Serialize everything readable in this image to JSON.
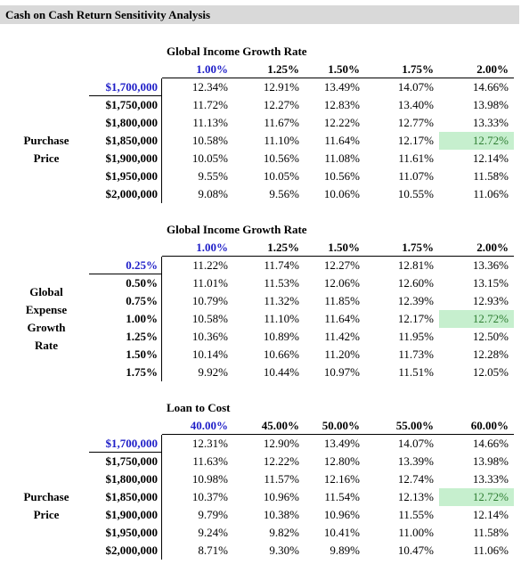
{
  "title": "Cash on Cash Return Sensitivity Analysis",
  "tables": [
    {
      "header": "Global Income Growth Rate",
      "row_label": "Purchase Price",
      "columns": [
        "1.00%",
        "1.25%",
        "1.50%",
        "1.75%",
        "2.00%"
      ],
      "highlighted_cell": [
        3,
        4
      ],
      "rows": [
        {
          "label": "$1,700,000",
          "values": [
            "12.34%",
            "12.91%",
            "13.49%",
            "14.07%",
            "14.66%"
          ]
        },
        {
          "label": "$1,750,000",
          "values": [
            "11.72%",
            "12.27%",
            "12.83%",
            "13.40%",
            "13.98%"
          ]
        },
        {
          "label": "$1,800,000",
          "values": [
            "11.13%",
            "11.67%",
            "12.22%",
            "12.77%",
            "13.33%"
          ]
        },
        {
          "label": "$1,850,000",
          "values": [
            "10.58%",
            "11.10%",
            "11.64%",
            "12.17%",
            "12.72%"
          ]
        },
        {
          "label": "$1,900,000",
          "values": [
            "10.05%",
            "10.56%",
            "11.08%",
            "11.61%",
            "12.14%"
          ]
        },
        {
          "label": "$1,950,000",
          "values": [
            "9.55%",
            "10.05%",
            "10.56%",
            "11.07%",
            "11.58%"
          ]
        },
        {
          "label": "$2,000,000",
          "values": [
            "9.08%",
            "9.56%",
            "10.06%",
            "10.55%",
            "11.06%"
          ]
        }
      ]
    },
    {
      "header": "Global Income Growth Rate",
      "row_label": "Global Expense Growth Rate",
      "columns": [
        "1.00%",
        "1.25%",
        "1.50%",
        "1.75%",
        "2.00%"
      ],
      "highlighted_cell": [
        3,
        4
      ],
      "rows": [
        {
          "label": "0.25%",
          "values": [
            "11.22%",
            "11.74%",
            "12.27%",
            "12.81%",
            "13.36%"
          ]
        },
        {
          "label": "0.50%",
          "values": [
            "11.01%",
            "11.53%",
            "12.06%",
            "12.60%",
            "13.15%"
          ]
        },
        {
          "label": "0.75%",
          "values": [
            "10.79%",
            "11.32%",
            "11.85%",
            "12.39%",
            "12.93%"
          ]
        },
        {
          "label": "1.00%",
          "values": [
            "10.58%",
            "11.10%",
            "11.64%",
            "12.17%",
            "12.72%"
          ]
        },
        {
          "label": "1.25%",
          "values": [
            "10.36%",
            "10.89%",
            "11.42%",
            "11.95%",
            "12.50%"
          ]
        },
        {
          "label": "1.50%",
          "values": [
            "10.14%",
            "10.66%",
            "11.20%",
            "11.73%",
            "12.28%"
          ]
        },
        {
          "label": "1.75%",
          "values": [
            "9.92%",
            "10.44%",
            "10.97%",
            "11.51%",
            "12.05%"
          ]
        }
      ]
    },
    {
      "header": "Loan to Cost",
      "row_label": "Purchase Price",
      "columns": [
        "40.00%",
        "45.00%",
        "50.00%",
        "55.00%",
        "60.00%"
      ],
      "highlighted_cell": [
        3,
        4
      ],
      "rows": [
        {
          "label": "$1,700,000",
          "values": [
            "12.31%",
            "12.90%",
            "13.49%",
            "14.07%",
            "14.66%"
          ]
        },
        {
          "label": "$1,750,000",
          "values": [
            "11.63%",
            "12.22%",
            "12.80%",
            "13.39%",
            "13.98%"
          ]
        },
        {
          "label": "$1,800,000",
          "values": [
            "10.98%",
            "11.57%",
            "12.16%",
            "12.74%",
            "13.33%"
          ]
        },
        {
          "label": "$1,850,000",
          "values": [
            "10.37%",
            "10.96%",
            "11.54%",
            "12.13%",
            "12.72%"
          ]
        },
        {
          "label": "$1,900,000",
          "values": [
            "9.79%",
            "10.38%",
            "10.96%",
            "11.55%",
            "12.14%"
          ]
        },
        {
          "label": "$1,950,000",
          "values": [
            "9.24%",
            "9.82%",
            "10.41%",
            "11.00%",
            "11.58%"
          ]
        },
        {
          "label": "$2,000,000",
          "values": [
            "8.71%",
            "9.30%",
            "9.89%",
            "10.47%",
            "11.06%"
          ]
        }
      ]
    }
  ]
}
